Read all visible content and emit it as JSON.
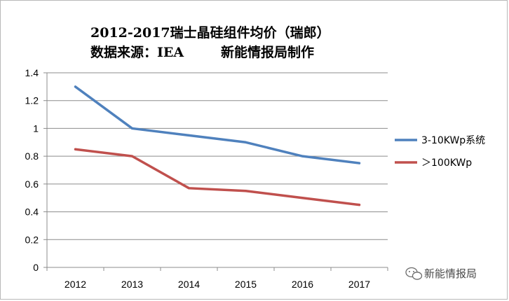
{
  "chart_data": {
    "type": "line",
    "title_line1": "2012-2017瑞士晶硅组件均价（瑞郎）",
    "title_line2_source": "数据来源：IEA",
    "title_line2_author": "新能情报局制作",
    "categories": [
      "2012",
      "2013",
      "2014",
      "2015",
      "2016",
      "2017"
    ],
    "ylim": [
      0,
      1.4
    ],
    "yticks": [
      "0",
      "0.2",
      "0.4",
      "0.6",
      "0.8",
      "1",
      "1.2",
      "1.4"
    ],
    "grid": true,
    "legend_position": "right",
    "series": [
      {
        "name": "3-10KWp系统",
        "color": "#4f81bd",
        "values": [
          1.3,
          1.0,
          0.95,
          0.9,
          0.8,
          0.75
        ]
      },
      {
        "name": "＞100KWp",
        "color": "#c0504d",
        "values": [
          0.85,
          0.8,
          0.57,
          0.55,
          0.5,
          0.45
        ]
      }
    ]
  },
  "watermark": {
    "text": "新能情报局",
    "icon": "wechat-icon"
  }
}
